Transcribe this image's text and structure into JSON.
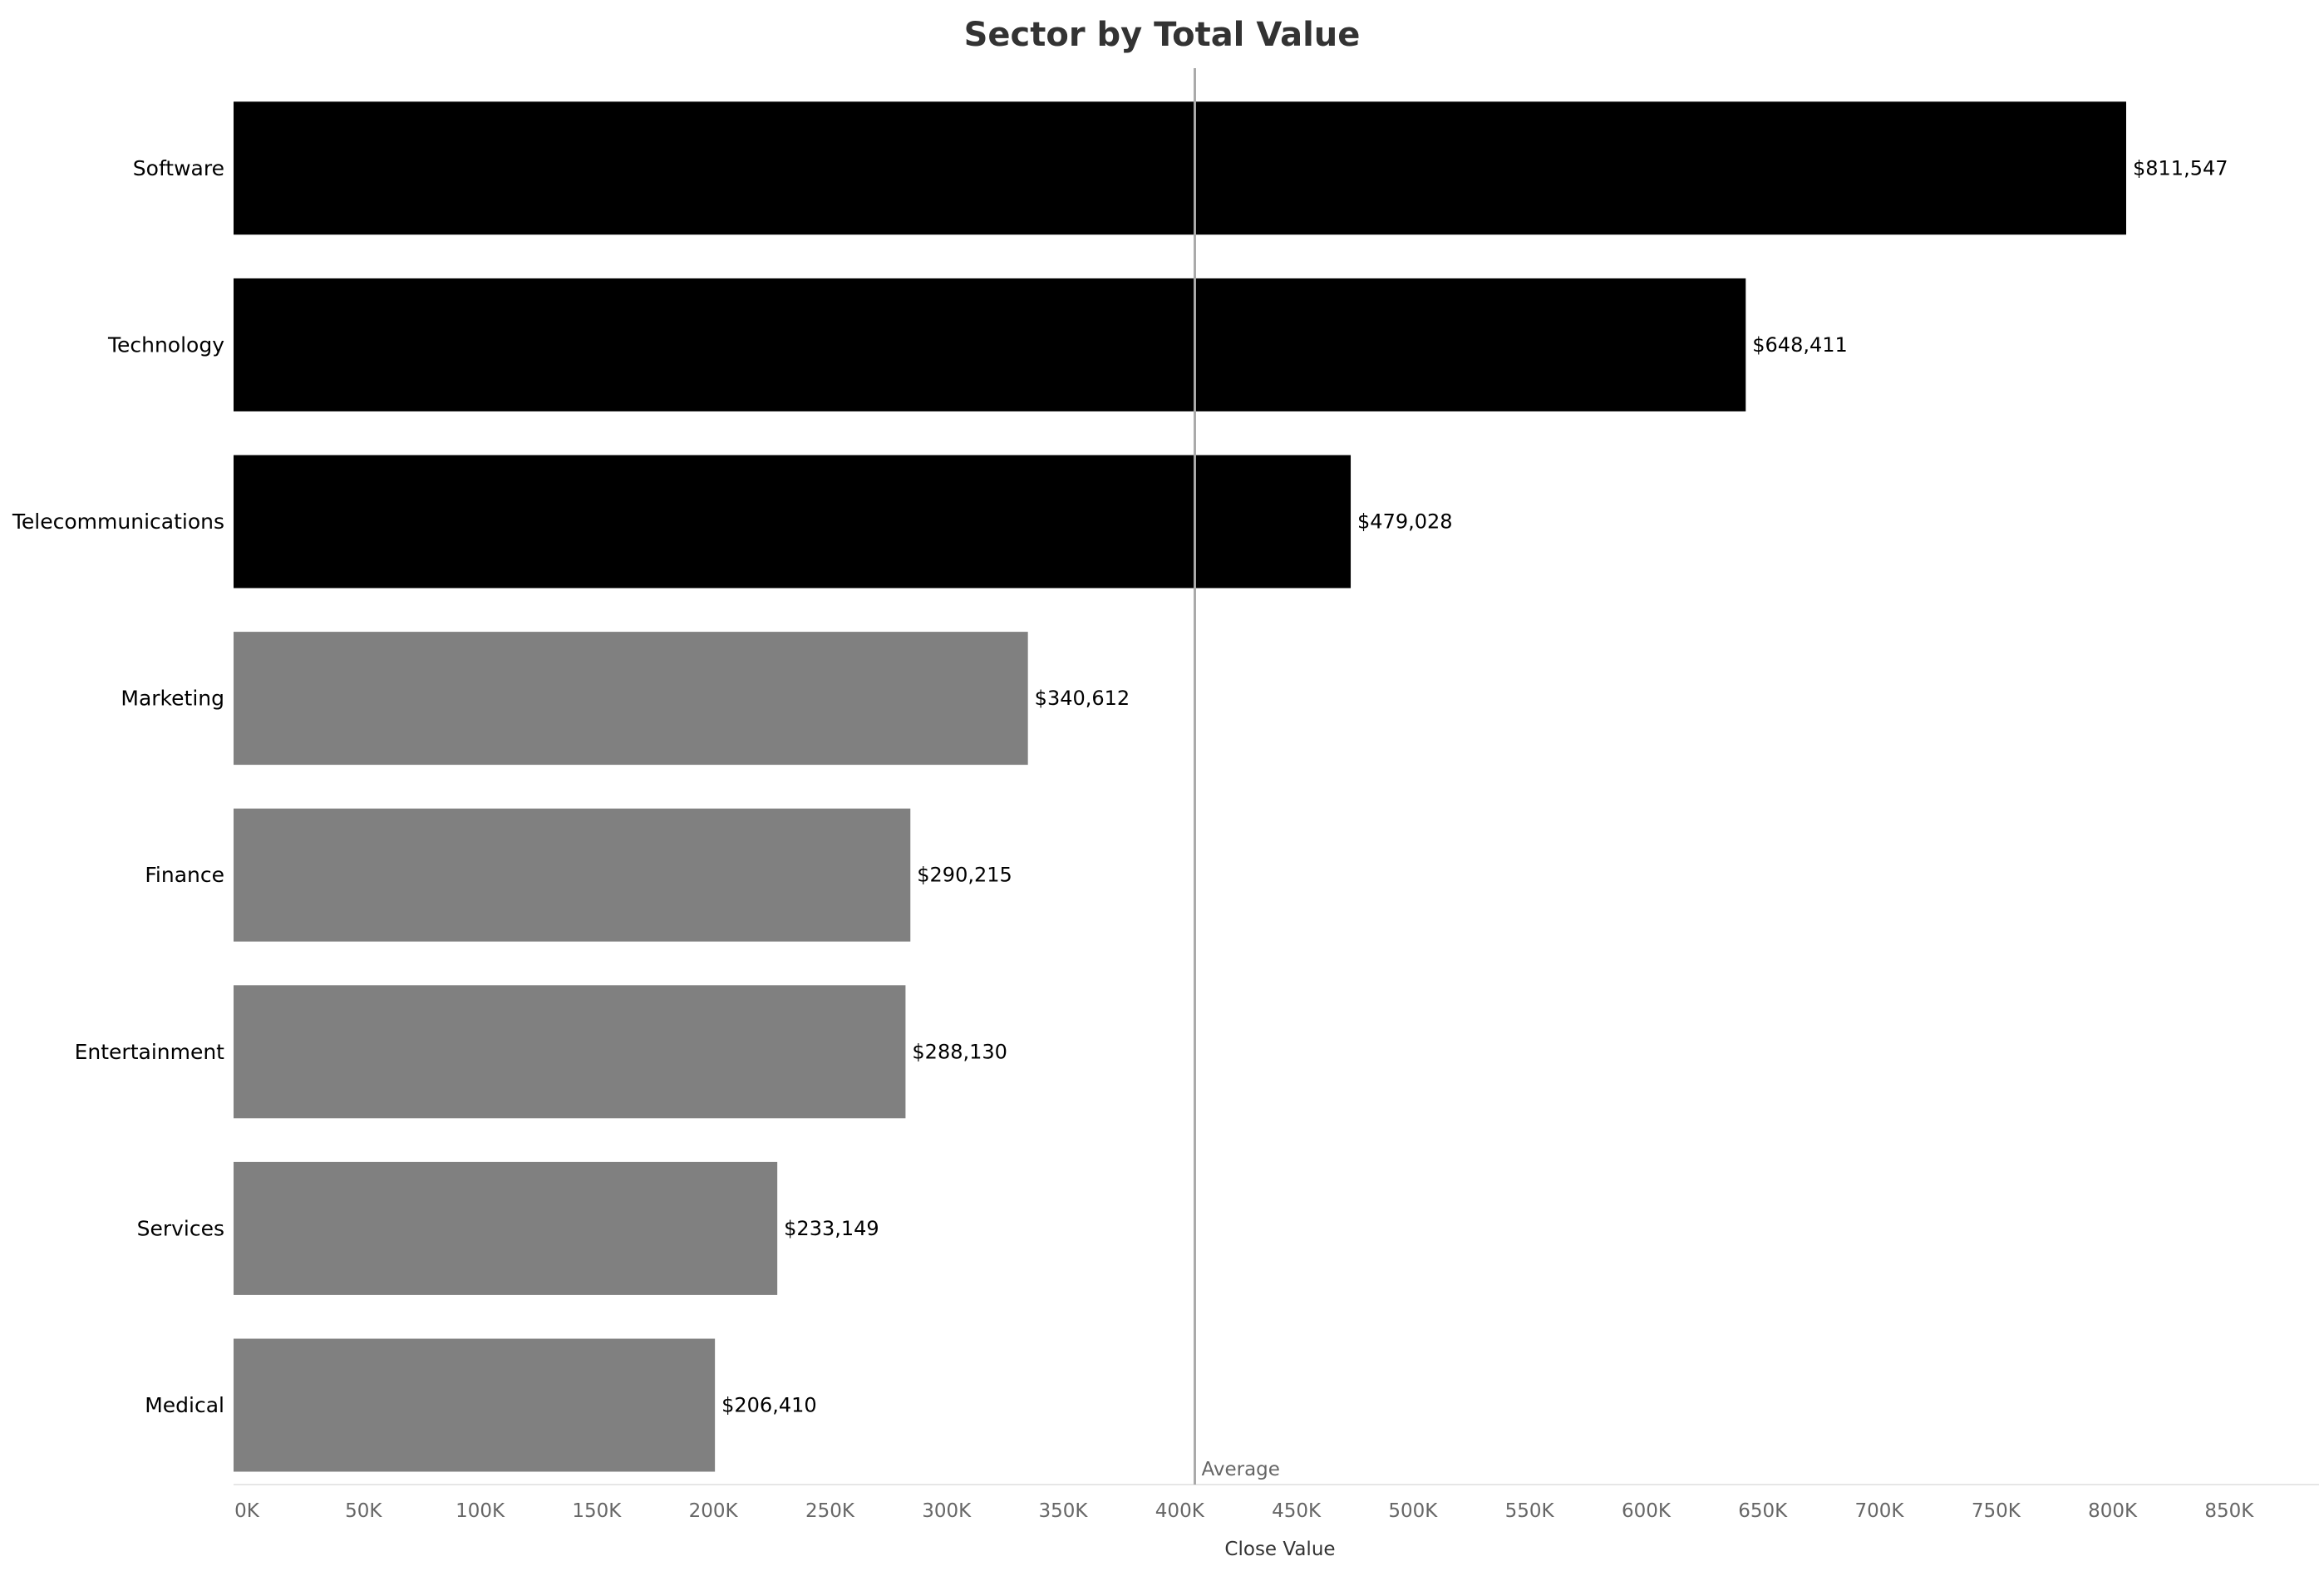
{
  "chart_data": {
    "type": "bar",
    "orientation": "horizontal",
    "title": "Sector by Total Value",
    "xlabel": "Close Value",
    "ylabel": "",
    "categories": [
      "Software",
      "Technology",
      "Telecommunications",
      "Marketing",
      "Finance",
      "Entertainment",
      "Services",
      "Medical"
    ],
    "values": [
      811547,
      648411,
      479028,
      340612,
      290215,
      288130,
      233149,
      206410
    ],
    "value_labels": [
      "$811,547",
      "$648,411",
      "$479,028",
      "$340,612",
      "$290,215",
      "$288,130",
      "$233,149",
      "$206,410"
    ],
    "highlighted": [
      true,
      true,
      true,
      false,
      false,
      false,
      false,
      false
    ],
    "xlim": [
      0,
      880000
    ],
    "x_ticks": [
      0,
      50000,
      100000,
      150000,
      200000,
      250000,
      300000,
      350000,
      400000,
      450000,
      500000,
      550000,
      600000,
      650000,
      700000,
      750000,
      800000,
      850000
    ],
    "x_tick_labels": [
      "0K",
      "50K",
      "100K",
      "150K",
      "200K",
      "250K",
      "300K",
      "350K",
      "400K",
      "450K",
      "500K",
      "550K",
      "600K",
      "650K",
      "700K",
      "750K",
      "800K",
      "850K"
    ],
    "reference_line": {
      "label": "Average",
      "value": 412188
    },
    "grid": false,
    "legend": "none",
    "colors": {
      "highlight_bar": "#000000",
      "bar": "#808080",
      "reference_line": "#aaaaaa",
      "tick_label": "#666666",
      "category_label": "#000000",
      "value_label": "#000000",
      "title": "#333333",
      "axis_line": "#e6e6e6"
    }
  }
}
